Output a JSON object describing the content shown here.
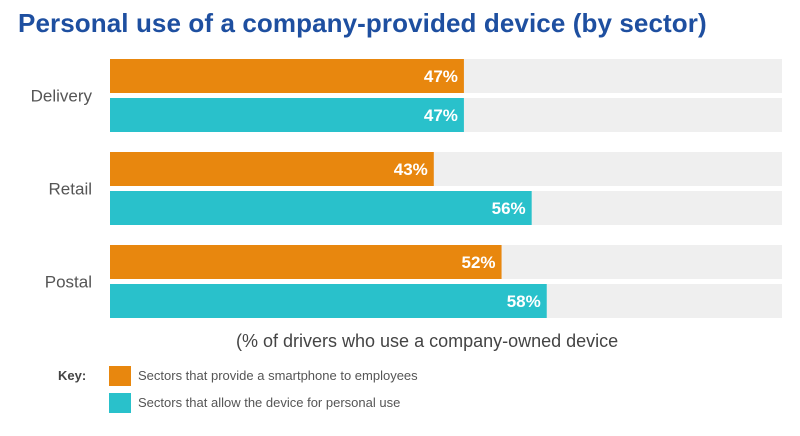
{
  "title": "Personal use of a company-provided device (by sector)",
  "note": "(% of drivers who use a company-owned device",
  "key": {
    "title": "Key:",
    "items": [
      {
        "label": "Sectors that provide a smartphone to employees",
        "color": "#e8870e"
      },
      {
        "label": "Sectors that allow the device for personal use",
        "color": "#29c1cb"
      }
    ]
  },
  "chart_data": {
    "type": "bar",
    "orientation": "horizontal",
    "title": "Personal use of a company-provided device (by sector)",
    "categories": [
      "Delivery",
      "Retail",
      "Postal"
    ],
    "series": [
      {
        "name": "Sectors that provide a smartphone to employees",
        "values": [
          47,
          43,
          52
        ],
        "color": "#e8870e"
      },
      {
        "name": "Sectors that allow the device for personal use",
        "values": [
          47,
          56,
          58
        ],
        "color": "#29c1cb"
      }
    ],
    "value_suffix": "%",
    "track_color": "#efefef",
    "xlim": [
      0,
      100
    ],
    "grid": false,
    "legend": "bottom-left"
  }
}
